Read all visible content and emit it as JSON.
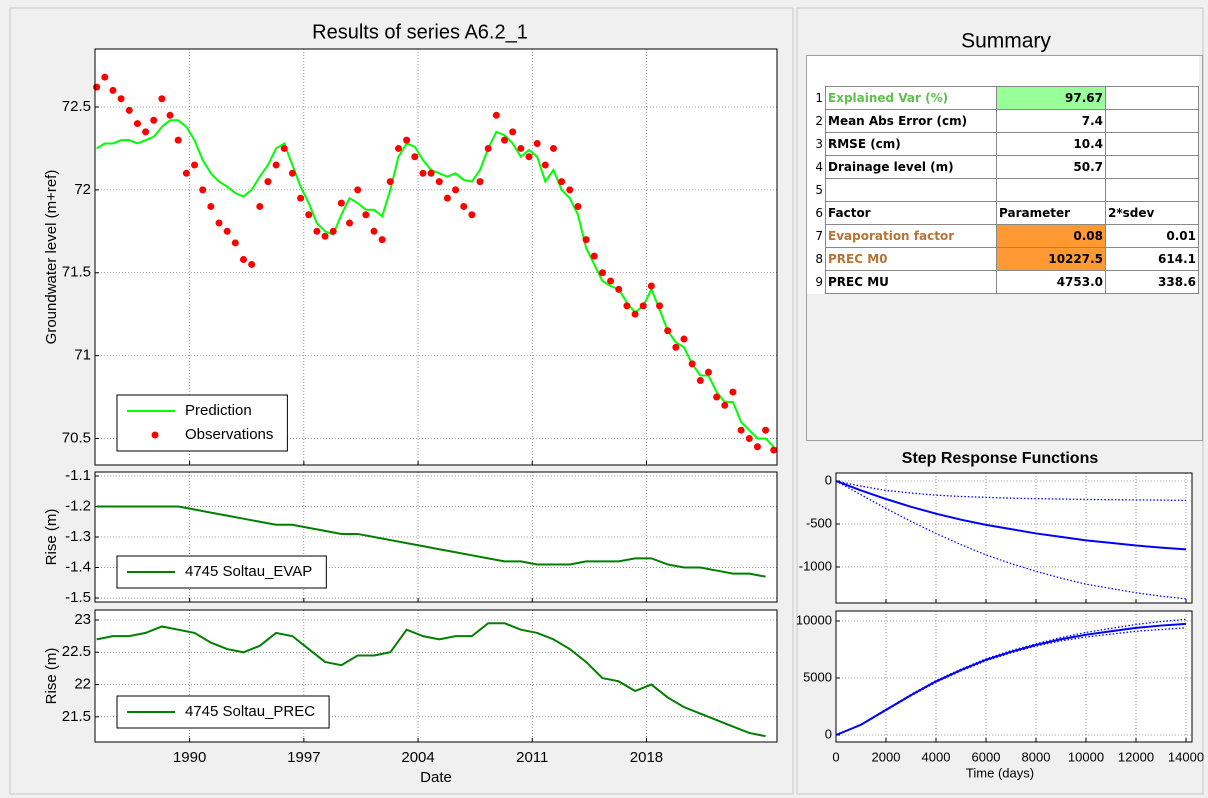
{
  "chart_data": [
    {
      "type": "line",
      "title": "Results of series A6.2_1",
      "ylabel": "Groundwater level (m+ref)",
      "x": [
        1984.3,
        1984.8,
        1985.3,
        1985.8,
        1986.3,
        1986.8,
        1987.3,
        1987.8,
        1988.3,
        1988.8,
        1989.3,
        1989.8,
        1990.3,
        1990.8,
        1991.3,
        1991.8,
        1992.3,
        1992.8,
        1993.3,
        1993.8,
        1994.3,
        1994.8,
        1995.3,
        1995.8,
        1996.3,
        1996.8,
        1997.3,
        1997.8,
        1998.3,
        1998.8,
        1999.3,
        1999.8,
        2000.3,
        2000.8,
        2001.3,
        2001.8,
        2002.3,
        2002.8,
        2003.3,
        2003.8,
        2004.3,
        2004.8,
        2005.3,
        2005.8,
        2006.3,
        2006.8,
        2007.3,
        2007.8,
        2008.3,
        2008.8,
        2009.3,
        2009.8,
        2010.3,
        2010.8,
        2011.3,
        2011.8,
        2012.3,
        2012.8,
        2013.3,
        2013.8,
        2014.3,
        2014.8,
        2015.3,
        2015.8,
        2016.3,
        2016.8,
        2017.3,
        2017.8,
        2018.3,
        2018.8,
        2019.3,
        2019.8,
        2020.3,
        2020.8,
        2021.3,
        2021.8,
        2022.3,
        2022.8,
        2023.3,
        2023.8,
        2024.3,
        2024.8,
        2025.3,
        2025.8
      ],
      "series": [
        {
          "name": "Prediction",
          "color": "#00ff00",
          "style": "solid",
          "values": [
            72.25,
            72.28,
            72.28,
            72.3,
            72.3,
            72.28,
            72.3,
            72.32,
            72.38,
            72.42,
            72.42,
            72.38,
            72.3,
            72.18,
            72.1,
            72.05,
            72.02,
            71.98,
            71.96,
            72.0,
            72.08,
            72.15,
            72.25,
            72.28,
            72.15,
            72.02,
            71.92,
            71.8,
            71.75,
            71.73,
            71.85,
            71.95,
            71.92,
            71.88,
            71.88,
            71.84,
            72.0,
            72.2,
            72.28,
            72.26,
            72.18,
            72.12,
            72.1,
            72.08,
            72.1,
            72.06,
            72.05,
            72.12,
            72.25,
            72.35,
            72.33,
            72.28,
            72.2,
            72.24,
            72.2,
            72.05,
            72.12,
            72.0,
            71.95,
            71.85,
            71.65,
            71.55,
            71.45,
            71.42,
            71.4,
            71.32,
            71.26,
            71.3,
            71.4,
            71.28,
            71.15,
            71.08,
            71.05,
            70.95,
            70.88,
            70.88,
            70.78,
            70.72,
            70.72,
            70.6,
            70.55,
            70.5,
            70.5,
            70.45
          ]
        },
        {
          "name": "Observations",
          "color": "#ff0000",
          "style": "markers",
          "values": [
            72.62,
            72.68,
            72.6,
            72.55,
            72.48,
            72.4,
            72.35,
            72.42,
            72.55,
            72.45,
            72.3,
            72.1,
            72.15,
            72.0,
            71.9,
            71.8,
            71.75,
            71.68,
            71.58,
            71.55,
            71.9,
            72.05,
            72.15,
            72.25,
            72.1,
            71.95,
            71.85,
            71.75,
            71.72,
            71.75,
            71.92,
            71.8,
            72.0,
            71.85,
            71.75,
            71.7,
            72.05,
            72.25,
            72.3,
            72.2,
            72.1,
            72.1,
            72.05,
            71.95,
            72.0,
            71.9,
            71.85,
            72.05,
            72.25,
            72.45,
            72.3,
            72.35,
            72.25,
            72.2,
            72.28,
            72.15,
            72.25,
            72.05,
            72.0,
            71.9,
            71.7,
            71.6,
            71.5,
            71.45,
            71.4,
            71.3,
            71.25,
            71.3,
            71.42,
            71.3,
            71.15,
            71.05,
            71.1,
            70.95,
            70.85,
            70.9,
            70.75,
            70.7,
            70.78,
            70.55,
            70.5,
            70.45,
            70.55,
            70.43
          ]
        }
      ],
      "xlim": [
        1984.2,
        2026.0
      ],
      "ylim": [
        70.34,
        72.85
      ],
      "xticks": [
        1990,
        1997,
        2004,
        2011,
        2018
      ],
      "yticks": [
        70.5,
        71,
        71.5,
        72,
        72.5
      ],
      "xtick_labels": false,
      "grid": true,
      "legend": "lower left"
    },
    {
      "type": "line",
      "ylabel": "Rise (m)",
      "x": [
        1984.3,
        1985.3,
        1986.3,
        1987.3,
        1988.3,
        1989.3,
        1990.3,
        1991.3,
        1992.3,
        1993.3,
        1994.3,
        1995.3,
        1996.3,
        1997.3,
        1998.3,
        1999.3,
        2000.3,
        2001.3,
        2002.3,
        2003.3,
        2004.3,
        2005.3,
        2006.3,
        2007.3,
        2008.3,
        2009.3,
        2010.3,
        2011.3,
        2012.3,
        2013.3,
        2014.3,
        2015.3,
        2016.3,
        2017.3,
        2018.3,
        2019.3,
        2020.3,
        2021.3,
        2022.3,
        2023.3,
        2024.3,
        2025.3
      ],
      "series": [
        {
          "name": "4745 Soltau_EVAP",
          "color": "#007f00",
          "style": "solid",
          "values": [
            -1.2,
            -1.2,
            -1.2,
            -1.2,
            -1.2,
            -1.2,
            -1.21,
            -1.22,
            -1.23,
            -1.24,
            -1.25,
            -1.26,
            -1.26,
            -1.27,
            -1.28,
            -1.29,
            -1.29,
            -1.3,
            -1.31,
            -1.32,
            -1.33,
            -1.34,
            -1.35,
            -1.36,
            -1.37,
            -1.38,
            -1.38,
            -1.39,
            -1.39,
            -1.39,
            -1.38,
            -1.38,
            -1.38,
            -1.37,
            -1.37,
            -1.39,
            -1.4,
            -1.4,
            -1.41,
            -1.42,
            -1.42,
            -1.43
          ]
        }
      ],
      "xlim": [
        1984.2,
        2026.0
      ],
      "ylim": [
        -1.513,
        -1.087
      ],
      "xticks": [
        1990,
        1997,
        2004,
        2011,
        2018
      ],
      "yticks": [
        -1.5,
        -1.4,
        -1.3,
        -1.2,
        -1.1
      ],
      "xtick_labels": false,
      "grid": true,
      "legend": "lower left"
    },
    {
      "type": "line",
      "ylabel": "Rise (m)",
      "xlabel": "Date",
      "x": [
        1984.3,
        1985.3,
        1986.3,
        1987.3,
        1988.3,
        1989.3,
        1990.3,
        1991.3,
        1992.3,
        1993.3,
        1994.3,
        1995.3,
        1996.3,
        1997.3,
        1998.3,
        1999.3,
        2000.3,
        2001.3,
        2002.3,
        2003.3,
        2004.3,
        2005.3,
        2006.3,
        2007.3,
        2008.3,
        2009.3,
        2010.3,
        2011.3,
        2012.3,
        2013.3,
        2014.3,
        2015.3,
        2016.3,
        2017.3,
        2018.3,
        2019.3,
        2020.3,
        2021.3,
        2022.3,
        2023.3,
        2024.3,
        2025.3
      ],
      "series": [
        {
          "name": "4745 Soltau_PREC",
          "color": "#007f00",
          "style": "solid",
          "values": [
            22.7,
            22.75,
            22.75,
            22.8,
            22.9,
            22.85,
            22.8,
            22.65,
            22.55,
            22.5,
            22.6,
            22.8,
            22.75,
            22.55,
            22.35,
            22.3,
            22.45,
            22.45,
            22.5,
            22.85,
            22.75,
            22.7,
            22.75,
            22.75,
            22.95,
            22.95,
            22.85,
            22.8,
            22.7,
            22.55,
            22.35,
            22.1,
            22.05,
            21.9,
            22.0,
            21.8,
            21.65,
            21.55,
            21.45,
            21.35,
            21.25,
            21.2
          ]
        }
      ],
      "xlim": [
        1984.2,
        2026.0
      ],
      "ylim": [
        21.11,
        23.155
      ],
      "xticks": [
        1990,
        1997,
        2004,
        2011,
        2018
      ],
      "yticks": [
        21.5,
        22,
        22.5,
        23
      ],
      "xtick_labels": true,
      "grid": true,
      "legend": "lower left"
    },
    {
      "type": "line",
      "title": "Step Response Functions",
      "x": [
        0,
        1000,
        2000,
        3000,
        4000,
        5000,
        6000,
        7000,
        8000,
        9000,
        10000,
        11000,
        12000,
        13000,
        14000
      ],
      "series": [
        {
          "color": "#0000ff",
          "style": "solid",
          "values": [
            0,
            -110,
            -210,
            -300,
            -380,
            -450,
            -510,
            -560,
            -610,
            -650,
            -690,
            -720,
            -750,
            -775,
            -795
          ]
        },
        {
          "color": "#0000ff",
          "style": "dotted",
          "values": [
            0,
            -60,
            -110,
            -140,
            -165,
            -180,
            -190,
            -200,
            -205,
            -210,
            -215,
            -218,
            -220,
            -222,
            -225
          ]
        },
        {
          "color": "#0000ff",
          "style": "dotted",
          "values": [
            0,
            -160,
            -320,
            -470,
            -610,
            -740,
            -860,
            -960,
            -1050,
            -1130,
            -1200,
            -1250,
            -1300,
            -1340,
            -1370
          ]
        }
      ],
      "xlim": [
        0,
        14240
      ],
      "ylim": [
        -1419,
        93
      ],
      "xticks": [
        0,
        2000,
        4000,
        6000,
        8000,
        10000,
        12000,
        14000
      ],
      "yticks": [
        -1000,
        -500,
        0
      ],
      "xtick_labels": false,
      "grid": true
    },
    {
      "type": "line",
      "xlabel": "Time (days)",
      "x": [
        0,
        1000,
        2000,
        3000,
        4000,
        5000,
        6000,
        7000,
        8000,
        9000,
        10000,
        11000,
        12000,
        13000,
        14000
      ],
      "series": [
        {
          "color": "#0000ff",
          "style": "solid",
          "values": [
            0,
            900,
            2200,
            3500,
            4700,
            5700,
            6600,
            7300,
            7900,
            8400,
            8800,
            9100,
            9400,
            9600,
            9750
          ]
        },
        {
          "color": "#0000ff",
          "style": "dotted",
          "values": [
            0,
            920,
            2250,
            3560,
            4770,
            5780,
            6690,
            7400,
            8000,
            8550,
            9000,
            9350,
            9700,
            9950,
            10150
          ]
        },
        {
          "color": "#0000ff",
          "style": "dotted",
          "values": [
            0,
            880,
            2150,
            3440,
            4630,
            5620,
            6510,
            7200,
            7800,
            8250,
            8600,
            8850,
            9100,
            9250,
            9400
          ]
        }
      ],
      "xlim": [
        0,
        14240
      ],
      "ylim": [
        -614,
        10877
      ],
      "xticks": [
        0,
        2000,
        4000,
        6000,
        8000,
        10000,
        12000,
        14000
      ],
      "yticks": [
        0,
        5000,
        10000
      ],
      "xtick_labels": true,
      "grid": true
    }
  ],
  "summary": {
    "title": "Summary",
    "rows": [
      {
        "number": 1,
        "cells": [
          "Explained Var (%)",
          "97.67",
          null
        ]
      },
      {
        "number": 2,
        "cells": [
          "Mean Abs Error (cm)",
          "7.4",
          null
        ]
      },
      {
        "number": 3,
        "cells": [
          "RMSE (cm)",
          "10.4",
          null
        ]
      },
      {
        "number": 4,
        "cells": [
          "Drainage level (m)",
          "50.7",
          null
        ]
      },
      {
        "number": 5,
        "cells": [
          null,
          null,
          null
        ]
      },
      {
        "number": 6,
        "cells": [
          "Factor",
          "Parameter",
          "2*sdev"
        ]
      },
      {
        "number": 7,
        "cells": [
          "Evaporation factor",
          "0.08",
          "0.01"
        ]
      },
      {
        "number": 8,
        "cells": [
          "PREC M0",
          "10227.5",
          "614.1"
        ]
      },
      {
        "number": 9,
        "cells": [
          "PREC MU",
          "4753.0",
          "338.6"
        ]
      }
    ]
  }
}
